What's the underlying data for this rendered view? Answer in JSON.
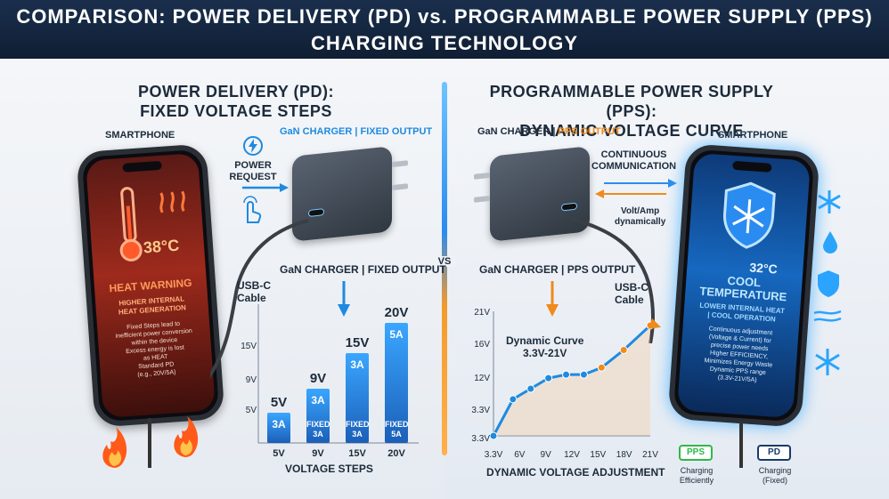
{
  "banner": {
    "line1": "COMPARISON: POWER DELIVERY (PD) vs. PROGRAMMABLE POWER SUPPLY (PPS)",
    "line2": "CHARGING TECHNOLOGY"
  },
  "vs": "VS",
  "pd": {
    "heading1": "POWER DELIVERY (PD):",
    "heading2": "FIXED VOLTAGE STEPS",
    "smartphone_label": "SMARTPHONE",
    "charger_label_top": "GaN CHARGER | FIXED OUTPUT",
    "charger_label_mid": "GaN CHARGER | FIXED OUTPUT",
    "power_request": "POWER\nREQUEST",
    "cable_label": "USB-C\nCable",
    "phone_temp": "38°C",
    "phone_warning": "HEAT WARNING",
    "phone_sub": "HIGHER INTERNAL\nHEAT GENERATION",
    "phone_body": "Fixed Steps lead to\ninefficient power conversion\nwithin the device\nExcess energy is lost\nas HEAT\nStandard PD\n(e.g., 20V/5A)",
    "axis_title": "VOLTAGE STEPS",
    "y_ticks": [
      "15V",
      "9V",
      "5V"
    ],
    "colors": {
      "accent": "#1f8ae0",
      "hot": "#e2452b"
    }
  },
  "pps": {
    "heading1": "PROGRAMMABLE POWER SUPPLY (PPS):",
    "heading2": "DYNAMIC VOLTAGE CURVE",
    "smartphone_label": "SMARTPHONE",
    "charger_label_top_a": "GaN CHARGER | ",
    "charger_label_top_b": "PPS OUTPUT",
    "charger_label_mid": "GaN CHARGER | PPS OUTPUT",
    "continuous": "CONTINUOUS\nCOMMUNICATION",
    "volt_amp": "Volt/Amp\ndynamically",
    "cable_label": "USB-C\nCable",
    "phone_temp": "32°C",
    "phone_title": "COOL\nTEMPERATURE",
    "phone_sub": "LOWER INTERNAL HEAT\n| COOL OPERATION",
    "phone_body": "Continuous adjustment\n(Voltage & Current) for\nprecise power needs\nHigher EFFICIENCY,\nMinimizes Energy Waste\nDynamic PPS range\n(3.3V-21V/5A)",
    "curve_label": "Dynamic Curve\n3.3V-21V",
    "axis_title": "DYNAMIC VOLTAGE ADJUSTMENT",
    "badge_pps": "PPS",
    "badge_pps_caption": "Charging\nEfficiently",
    "badge_pd": "PD",
    "badge_pd_caption": "Charging\n(Fixed)",
    "colors": {
      "accent": "#f08a1c",
      "cool": "#2aa4ff"
    }
  },
  "chart_data": [
    {
      "type": "bar",
      "title": "",
      "xlabel": "VOLTAGE STEPS",
      "ylabel": "",
      "categories": [
        "5V",
        "9V",
        "15V",
        "20V"
      ],
      "bar_labels": [
        "5V",
        "9V",
        "15V",
        "20V"
      ],
      "current_labels": [
        "3A",
        "3A",
        "3A",
        "5A"
      ],
      "fixed_labels": [
        "FIXED\n3A",
        "FIXED\n3A",
        "FIXED\n3A",
        "FIXED\n5A"
      ],
      "values": [
        5,
        9,
        15,
        20
      ],
      "y_ticks": [
        "15V",
        "9V",
        "5V"
      ],
      "ylim": [
        0,
        21
      ]
    },
    {
      "type": "line",
      "title": "",
      "xlabel": "DYNAMIC VOLTAGE ADJUSTMENT",
      "ylabel": "",
      "x_ticks": [
        "3.3V",
        "6V",
        "9V",
        "12V",
        "15V",
        "18V",
        "21V"
      ],
      "y_ticks": [
        "21V",
        "16V",
        "12V",
        "3.3V",
        "3.3V"
      ],
      "x": [
        3.3,
        5.5,
        7.5,
        9.5,
        11.5,
        13.5,
        15.5,
        18,
        21
      ],
      "y": [
        3.3,
        8.5,
        10,
        11.5,
        12,
        12,
        13,
        15.5,
        19
      ],
      "ylim": [
        3.3,
        21
      ]
    }
  ]
}
